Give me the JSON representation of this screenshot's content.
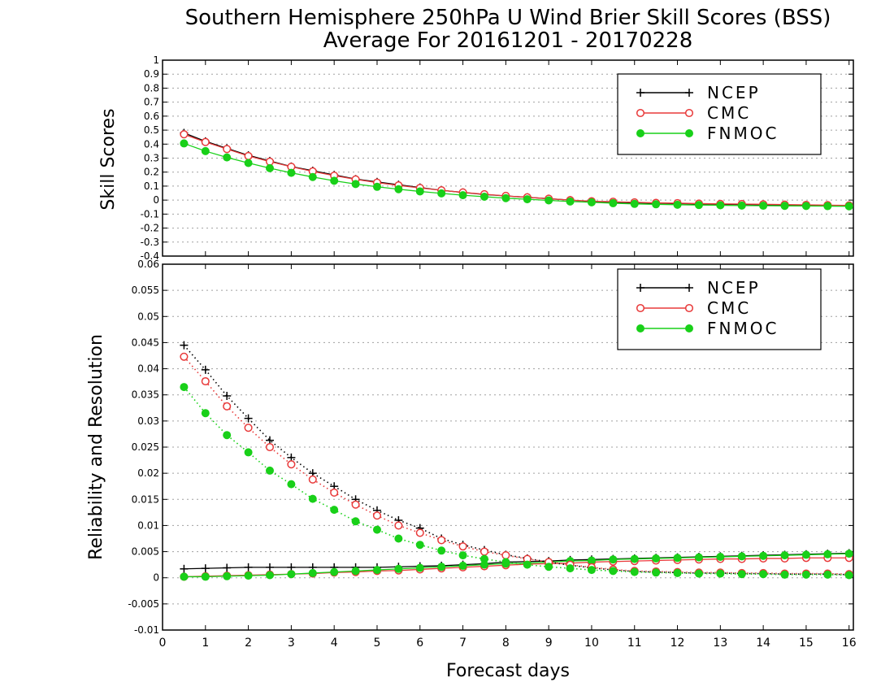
{
  "title_line1": "Southern Hemisphere 250hPa U Wind Brier Skill Scores (BSS)",
  "title_line2": "Average For 20161201 - 20170228",
  "xlabel": "Forecast days",
  "colors": {
    "NCEP": "#000000",
    "CMC": "#e83a3a",
    "FNMOC": "#19d019"
  },
  "x_ticks": [
    "0",
    "1",
    "2",
    "3",
    "4",
    "5",
    "6",
    "7",
    "8",
    "9",
    "10",
    "11",
    "12",
    "13",
    "14",
    "15",
    "16"
  ],
  "chart_data": [
    {
      "type": "line",
      "ylabel": "Skill Scores",
      "xlim": [
        0,
        16.1
      ],
      "ylim": [
        -0.4,
        1
      ],
      "y_ticks": [
        "1",
        "0.9",
        "0.8",
        "0.7",
        "0.6",
        "0.5",
        "0.4",
        "0.3",
        "0.2",
        "0.1",
        "0",
        "-0.1",
        "-0.2",
        "-0.3",
        "-0.4"
      ],
      "grid": true,
      "legend_position": "top-right",
      "x": [
        0.5,
        1,
        1.5,
        2,
        2.5,
        3,
        3.5,
        4,
        4.5,
        5,
        5.5,
        6,
        6.5,
        7,
        7.5,
        8,
        8.5,
        9,
        9.5,
        10,
        10.5,
        11,
        11.5,
        12,
        12.5,
        13,
        13.5,
        14,
        14.5,
        15,
        15.5,
        16
      ],
      "series": [
        {
          "name": "NCEP",
          "values": [
            0.48,
            0.42,
            0.37,
            0.32,
            0.28,
            0.24,
            0.21,
            0.18,
            0.15,
            0.13,
            0.11,
            0.09,
            0.07,
            0.055,
            0.04,
            0.03,
            0.02,
            0.01,
            0.0,
            -0.01,
            -0.015,
            -0.02,
            -0.022,
            -0.025,
            -0.028,
            -0.03,
            -0.032,
            -0.034,
            -0.036,
            -0.038,
            -0.04,
            -0.042
          ]
        },
        {
          "name": "CMC",
          "values": [
            0.47,
            0.415,
            0.365,
            0.315,
            0.275,
            0.238,
            0.205,
            0.175,
            0.148,
            0.125,
            0.105,
            0.087,
            0.07,
            0.055,
            0.042,
            0.03,
            0.02,
            0.01,
            0.0,
            -0.008,
            -0.012,
            -0.016,
            -0.02,
            -0.022,
            -0.025,
            -0.027,
            -0.028,
            -0.03,
            -0.032,
            -0.034,
            -0.036,
            -0.038
          ]
        },
        {
          "name": "FNMOC",
          "values": [
            0.405,
            0.35,
            0.305,
            0.265,
            0.228,
            0.195,
            0.165,
            0.138,
            0.115,
            0.095,
            0.078,
            0.062,
            0.048,
            0.035,
            0.024,
            0.014,
            0.006,
            -0.002,
            -0.01,
            -0.016,
            -0.022,
            -0.027,
            -0.03,
            -0.033,
            -0.035,
            -0.037,
            -0.039,
            -0.04,
            -0.041,
            -0.042,
            -0.043,
            -0.044
          ]
        }
      ]
    },
    {
      "type": "line",
      "ylabel": "Reliability and Resolution",
      "xlim": [
        0,
        16.1
      ],
      "ylim": [
        -0.01,
        0.06
      ],
      "y_ticks": [
        "0.06",
        "0.055",
        "0.05",
        "0.045",
        "0.04",
        "0.035",
        "0.03",
        "0.025",
        "0.02",
        "0.015",
        "0.01",
        "0.005",
        "0",
        "-0.005",
        "-0.01"
      ],
      "grid": true,
      "legend_position": "top-right",
      "x": [
        0.5,
        1,
        1.5,
        2,
        2.5,
        3,
        3.5,
        4,
        4.5,
        5,
        5.5,
        6,
        6.5,
        7,
        7.5,
        8,
        8.5,
        9,
        9.5,
        10,
        10.5,
        11,
        11.5,
        12,
        12.5,
        13,
        13.5,
        14,
        14.5,
        15,
        15.5,
        16
      ],
      "series": [
        {
          "name": "NCEP",
          "values": [
            0.0017,
            0.0018,
            0.0019,
            0.002,
            0.002,
            0.002,
            0.002,
            0.002,
            0.002,
            0.002,
            0.0021,
            0.0022,
            0.0023,
            0.0025,
            0.0027,
            0.003,
            0.0031,
            0.0032,
            0.0034,
            0.0035,
            0.0036,
            0.0037,
            0.0038,
            0.0039,
            0.004,
            0.0041,
            0.0042,
            0.0043,
            0.0044,
            0.0045,
            0.0046,
            0.0047
          ]
        },
        {
          "name": "CMC",
          "values": [
            0.0002,
            0.0003,
            0.0004,
            0.0005,
            0.0006,
            0.0007,
            0.0008,
            0.001,
            0.0011,
            0.0013,
            0.0014,
            0.0016,
            0.0018,
            0.002,
            0.0022,
            0.0024,
            0.0026,
            0.0027,
            0.0028,
            0.003,
            0.0031,
            0.0032,
            0.0033,
            0.0034,
            0.0035,
            0.0036,
            0.0036,
            0.0037,
            0.0037,
            0.0038,
            0.0038,
            0.0038
          ]
        },
        {
          "name": "FNMOC",
          "values": [
            0.0002,
            0.0002,
            0.0003,
            0.0004,
            0.0005,
            0.0007,
            0.0009,
            0.0011,
            0.0013,
            0.0015,
            0.0017,
            0.0019,
            0.0021,
            0.0023,
            0.0025,
            0.0027,
            0.0028,
            0.003,
            0.0032,
            0.0033,
            0.0035,
            0.0036,
            0.0037,
            0.0038,
            0.0039,
            0.004,
            0.0041,
            0.0042,
            0.0043,
            0.0044,
            0.0045,
            0.0046
          ]
        },
        {
          "name": "",
          "style": "dotted",
          "of": "NCEP",
          "values": [
            0.0445,
            0.0398,
            0.0348,
            0.0305,
            0.0263,
            0.023,
            0.02,
            0.0175,
            0.015,
            0.0129,
            0.011,
            0.0095,
            0.0075,
            0.0063,
            0.0053,
            0.0044,
            0.0037,
            0.003,
            0.0024,
            0.0019,
            0.0015,
            0.0012,
            0.0011,
            0.001,
            0.0009,
            0.0009,
            0.0008,
            0.0008,
            0.0007,
            0.0007,
            0.0007,
            0.0006
          ]
        },
        {
          "name": "",
          "style": "dotted",
          "of": "CMC",
          "values": [
            0.0423,
            0.0376,
            0.0328,
            0.0287,
            0.025,
            0.0217,
            0.0188,
            0.0163,
            0.014,
            0.0119,
            0.01,
            0.0086,
            0.0072,
            0.006,
            0.005,
            0.0043,
            0.0036,
            0.003,
            0.0025,
            0.002,
            0.0016,
            0.0013,
            0.0012,
            0.0011,
            0.001,
            0.001,
            0.0009,
            0.0009,
            0.0008,
            0.0008,
            0.0008,
            0.0007
          ]
        },
        {
          "name": "",
          "style": "dotted",
          "of": "FNMOC",
          "values": [
            0.0365,
            0.0315,
            0.0273,
            0.024,
            0.0205,
            0.0179,
            0.0151,
            0.013,
            0.0108,
            0.0092,
            0.0075,
            0.0063,
            0.0052,
            0.0043,
            0.0036,
            0.003,
            0.0025,
            0.0021,
            0.0018,
            0.0015,
            0.0013,
            0.0011,
            0.001,
            0.0009,
            0.0008,
            0.0008,
            0.0007,
            0.0007,
            0.0006,
            0.0006,
            0.0006,
            0.0005
          ]
        }
      ]
    }
  ]
}
